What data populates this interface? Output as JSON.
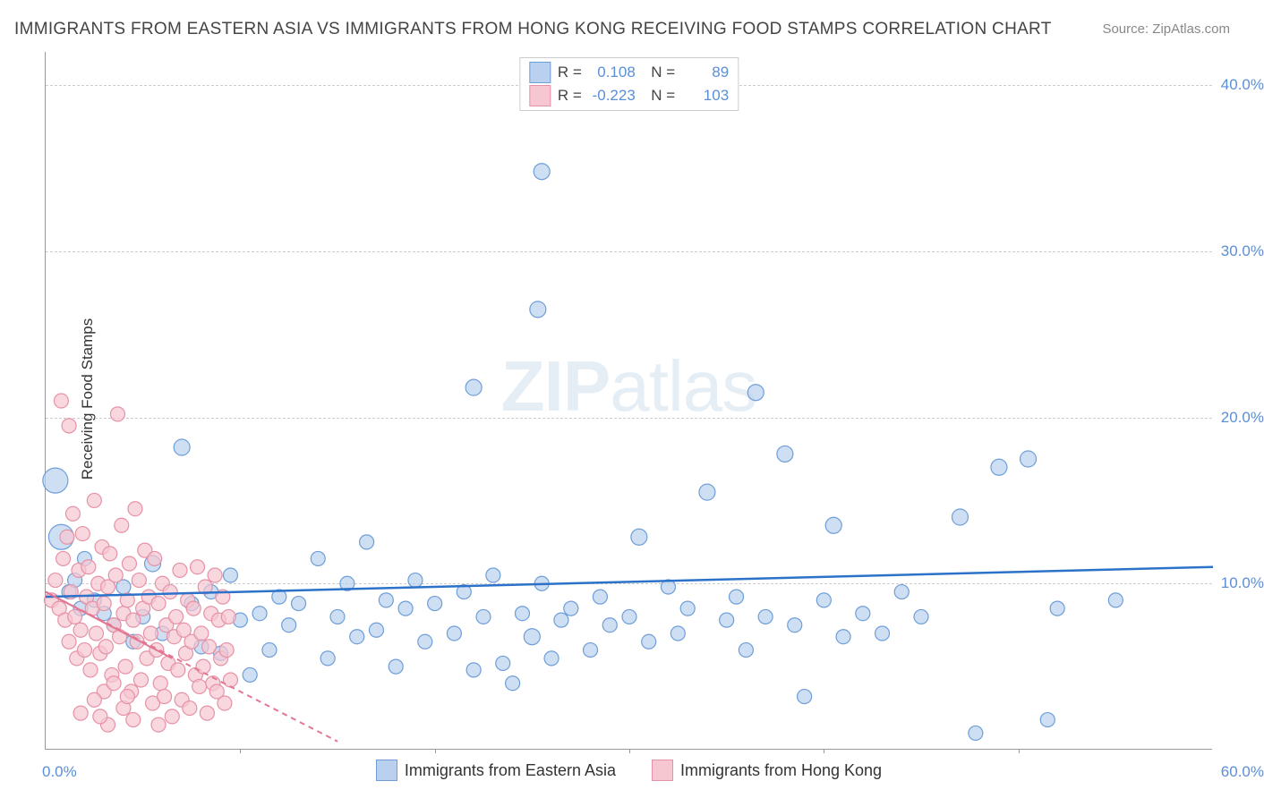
{
  "title": "IMMIGRANTS FROM EASTERN ASIA VS IMMIGRANTS FROM HONG KONG RECEIVING FOOD STAMPS CORRELATION CHART",
  "source": "Source: ZipAtlas.com",
  "ylabel": "Receiving Food Stamps",
  "watermark_a": "ZIP",
  "watermark_b": "atlas",
  "chart": {
    "type": "scatter",
    "background_color": "#ffffff",
    "grid_color": "#cccccc",
    "axis_color": "#999999",
    "xlim": [
      0,
      60
    ],
    "ylim": [
      0,
      42
    ],
    "ytick_step": 10,
    "xtick_step": 10,
    "ytick_labels": [
      "10.0%",
      "20.0%",
      "30.0%",
      "40.0%"
    ],
    "ytick_values": [
      10,
      20,
      30,
      40
    ],
    "xtick_labels": [
      "0.0%",
      "60.0%"
    ],
    "xtick_values": [
      0,
      60
    ],
    "ytick_color": "#5b8fd6",
    "xtick_color": "#5b8fd6",
    "series": [
      {
        "name": "Immigrants from Eastern Asia",
        "color_fill": "#b9d1ee",
        "color_stroke": "#6e9ed8",
        "marker": "circle",
        "marker_opacity": 0.7,
        "marker_radius": 8,
        "stats": {
          "R": "0.108",
          "N": "89"
        },
        "trend": {
          "x1": 0,
          "y1": 9.2,
          "x2": 60,
          "y2": 11.0,
          "color": "#2d72c9",
          "width": 2.5,
          "dash": "none"
        },
        "points": [
          [
            0.5,
            16.2,
            14
          ],
          [
            0.8,
            12.8,
            14
          ],
          [
            1.2,
            9.5,
            8
          ],
          [
            1.5,
            10.2,
            8
          ],
          [
            1.8,
            8.5,
            8
          ],
          [
            2.0,
            11.5,
            8
          ],
          [
            2.5,
            9.0,
            8
          ],
          [
            3.0,
            8.2,
            8
          ],
          [
            3.5,
            7.5,
            8
          ],
          [
            4.0,
            9.8,
            8
          ],
          [
            4.5,
            6.5,
            8
          ],
          [
            5.0,
            8.0,
            8
          ],
          [
            5.5,
            11.2,
            9
          ],
          [
            6.0,
            7.0,
            8
          ],
          [
            7.0,
            18.2,
            9
          ],
          [
            7.5,
            8.8,
            8
          ],
          [
            8.0,
            6.2,
            8
          ],
          [
            8.5,
            9.5,
            8
          ],
          [
            9.0,
            5.8,
            8
          ],
          [
            9.5,
            10.5,
            8
          ],
          [
            10.0,
            7.8,
            8
          ],
          [
            10.5,
            4.5,
            8
          ],
          [
            11.0,
            8.2,
            8
          ],
          [
            11.5,
            6.0,
            8
          ],
          [
            12.0,
            9.2,
            8
          ],
          [
            12.5,
            7.5,
            8
          ],
          [
            13.0,
            8.8,
            8
          ],
          [
            14.0,
            11.5,
            8
          ],
          [
            14.5,
            5.5,
            8
          ],
          [
            15.0,
            8.0,
            8
          ],
          [
            15.5,
            10.0,
            8
          ],
          [
            16.0,
            6.8,
            8
          ],
          [
            16.5,
            12.5,
            8
          ],
          [
            17.0,
            7.2,
            8
          ],
          [
            17.5,
            9.0,
            8
          ],
          [
            18.0,
            5.0,
            8
          ],
          [
            18.5,
            8.5,
            8
          ],
          [
            19.0,
            10.2,
            8
          ],
          [
            19.5,
            6.5,
            8
          ],
          [
            20.0,
            8.8,
            8
          ],
          [
            21.0,
            7.0,
            8
          ],
          [
            21.5,
            9.5,
            8
          ],
          [
            22.0,
            4.8,
            8
          ],
          [
            22.5,
            8.0,
            8
          ],
          [
            23.0,
            10.5,
            8
          ],
          [
            23.5,
            5.2,
            8
          ],
          [
            24.0,
            4.0,
            8
          ],
          [
            24.5,
            8.2,
            8
          ],
          [
            25.0,
            6.8,
            9
          ],
          [
            25.3,
            26.5,
            9
          ],
          [
            25.5,
            34.8,
            9
          ],
          [
            25.5,
            10.0,
            8
          ],
          [
            26.0,
            5.5,
            8
          ],
          [
            26.5,
            7.8,
            8
          ],
          [
            27.0,
            8.5,
            8
          ],
          [
            28.0,
            6.0,
            8
          ],
          [
            28.5,
            9.2,
            8
          ],
          [
            29.0,
            7.5,
            8
          ],
          [
            30.0,
            8.0,
            8
          ],
          [
            30.5,
            12.8,
            9
          ],
          [
            31.0,
            6.5,
            8
          ],
          [
            32.0,
            9.8,
            8
          ],
          [
            32.5,
            7.0,
            8
          ],
          [
            33.0,
            8.5,
            8
          ],
          [
            34.0,
            15.5,
            9
          ],
          [
            35.0,
            7.8,
            8
          ],
          [
            35.5,
            9.2,
            8
          ],
          [
            36.0,
            6.0,
            8
          ],
          [
            37.0,
            8.0,
            8
          ],
          [
            38.0,
            17.8,
            9
          ],
          [
            38.5,
            7.5,
            8
          ],
          [
            39.0,
            3.2,
            8
          ],
          [
            40.0,
            9.0,
            8
          ],
          [
            40.5,
            13.5,
            9
          ],
          [
            41.0,
            6.8,
            8
          ],
          [
            42.0,
            8.2,
            8
          ],
          [
            43.0,
            7.0,
            8
          ],
          [
            44.0,
            9.5,
            8
          ],
          [
            45.0,
            8.0,
            8
          ],
          [
            22.0,
            21.8,
            9
          ],
          [
            36.5,
            21.5,
            9
          ],
          [
            47.0,
            14.0,
            9
          ],
          [
            47.8,
            1.0,
            8
          ],
          [
            49.0,
            17.0,
            9
          ],
          [
            50.5,
            17.5,
            9
          ],
          [
            51.5,
            1.8,
            8
          ],
          [
            52.0,
            8.5,
            8
          ],
          [
            55.0,
            9.0,
            8
          ]
        ]
      },
      {
        "name": "Immigrants from Hong Kong",
        "color_fill": "#f6c6d1",
        "color_stroke": "#e692a6",
        "marker": "circle",
        "marker_opacity": 0.7,
        "marker_radius": 8,
        "stats": {
          "R": "-0.223",
          "N": "103"
        },
        "trend": {
          "x1": 0,
          "y1": 9.5,
          "x2": 15,
          "y2": 0.5,
          "color": "#e37693",
          "width": 2,
          "dash": "6,5"
        },
        "trend_solid": {
          "x1": 0,
          "y1": 9.5,
          "x2": 6.5,
          "y2": 5.5,
          "color": "#e37693",
          "width": 2
        },
        "points": [
          [
            0.3,
            9.0,
            8
          ],
          [
            0.5,
            10.2,
            8
          ],
          [
            0.7,
            8.5,
            8
          ],
          [
            0.9,
            11.5,
            8
          ],
          [
            1.0,
            7.8,
            8
          ],
          [
            1.1,
            12.8,
            8
          ],
          [
            1.2,
            6.5,
            8
          ],
          [
            1.3,
            9.5,
            8
          ],
          [
            1.4,
            14.2,
            8
          ],
          [
            1.5,
            8.0,
            8
          ],
          [
            1.6,
            5.5,
            8
          ],
          [
            1.7,
            10.8,
            8
          ],
          [
            1.8,
            7.2,
            8
          ],
          [
            1.9,
            13.0,
            8
          ],
          [
            2.0,
            6.0,
            8
          ],
          [
            2.1,
            9.2,
            8
          ],
          [
            2.2,
            11.0,
            8
          ],
          [
            2.3,
            4.8,
            8
          ],
          [
            2.4,
            8.5,
            8
          ],
          [
            2.5,
            15.0,
            8
          ],
          [
            2.6,
            7.0,
            8
          ],
          [
            2.7,
            10.0,
            8
          ],
          [
            2.8,
            5.8,
            8
          ],
          [
            2.9,
            12.2,
            8
          ],
          [
            3.0,
            8.8,
            8
          ],
          [
            3.1,
            6.2,
            8
          ],
          [
            3.2,
            9.8,
            8
          ],
          [
            3.3,
            11.8,
            8
          ],
          [
            3.4,
            4.5,
            8
          ],
          [
            3.5,
            7.5,
            8
          ],
          [
            3.6,
            10.5,
            8
          ],
          [
            3.7,
            20.2,
            8
          ],
          [
            3.8,
            6.8,
            8
          ],
          [
            3.9,
            13.5,
            8
          ],
          [
            4.0,
            8.2,
            8
          ],
          [
            4.1,
            5.0,
            8
          ],
          [
            4.2,
            9.0,
            8
          ],
          [
            4.3,
            11.2,
            8
          ],
          [
            4.4,
            3.5,
            8
          ],
          [
            4.5,
            7.8,
            8
          ],
          [
            4.6,
            14.5,
            8
          ],
          [
            4.7,
            6.5,
            8
          ],
          [
            4.8,
            10.2,
            8
          ],
          [
            4.9,
            4.2,
            8
          ],
          [
            5.0,
            8.5,
            8
          ],
          [
            5.1,
            12.0,
            8
          ],
          [
            5.2,
            5.5,
            8
          ],
          [
            5.3,
            9.2,
            8
          ],
          [
            5.4,
            7.0,
            8
          ],
          [
            5.5,
            2.8,
            8
          ],
          [
            5.6,
            11.5,
            8
          ],
          [
            5.7,
            6.0,
            8
          ],
          [
            5.8,
            8.8,
            8
          ],
          [
            5.9,
            4.0,
            8
          ],
          [
            6.0,
            10.0,
            8
          ],
          [
            1.2,
            19.5,
            8
          ],
          [
            0.8,
            21.0,
            8
          ],
          [
            6.1,
            3.2,
            8
          ],
          [
            6.2,
            7.5,
            8
          ],
          [
            6.3,
            5.2,
            8
          ],
          [
            6.4,
            9.5,
            8
          ],
          [
            6.5,
            2.0,
            8
          ],
          [
            6.6,
            6.8,
            8
          ],
          [
            6.7,
            8.0,
            8
          ],
          [
            6.8,
            4.8,
            8
          ],
          [
            6.9,
            10.8,
            8
          ],
          [
            7.0,
            3.0,
            8
          ],
          [
            7.1,
            7.2,
            8
          ],
          [
            7.2,
            5.8,
            8
          ],
          [
            7.3,
            9.0,
            8
          ],
          [
            7.4,
            2.5,
            8
          ],
          [
            7.5,
            6.5,
            8
          ],
          [
            7.6,
            8.5,
            8
          ],
          [
            7.7,
            4.5,
            8
          ],
          [
            7.8,
            11.0,
            8
          ],
          [
            7.9,
            3.8,
            8
          ],
          [
            8.0,
            7.0,
            8
          ],
          [
            8.1,
            5.0,
            8
          ],
          [
            8.2,
            9.8,
            8
          ],
          [
            8.3,
            2.2,
            8
          ],
          [
            8.4,
            6.2,
            8
          ],
          [
            8.5,
            8.2,
            8
          ],
          [
            8.6,
            4.0,
            8
          ],
          [
            8.7,
            10.5,
            8
          ],
          [
            8.8,
            3.5,
            8
          ],
          [
            8.9,
            7.8,
            8
          ],
          [
            9.0,
            5.5,
            8
          ],
          [
            9.1,
            9.2,
            8
          ],
          [
            9.2,
            2.8,
            8
          ],
          [
            9.3,
            6.0,
            8
          ],
          [
            9.4,
            8.0,
            8
          ],
          [
            9.5,
            4.2,
            8
          ],
          [
            3.2,
            1.5,
            8
          ],
          [
            2.8,
            2.0,
            8
          ],
          [
            4.5,
            1.8,
            8
          ],
          [
            5.8,
            1.5,
            8
          ],
          [
            3.0,
            3.5,
            8
          ],
          [
            4.0,
            2.5,
            8
          ],
          [
            2.5,
            3.0,
            8
          ],
          [
            1.8,
            2.2,
            8
          ],
          [
            3.5,
            4.0,
            8
          ],
          [
            4.2,
            3.2,
            8
          ]
        ]
      }
    ],
    "legend_bottom": [
      {
        "label": "Immigrants from Eastern Asia",
        "fill": "#b9d1ee",
        "stroke": "#6e9ed8"
      },
      {
        "label": "Immigrants from Hong Kong",
        "fill": "#f6c6d1",
        "stroke": "#e692a6"
      }
    ]
  }
}
